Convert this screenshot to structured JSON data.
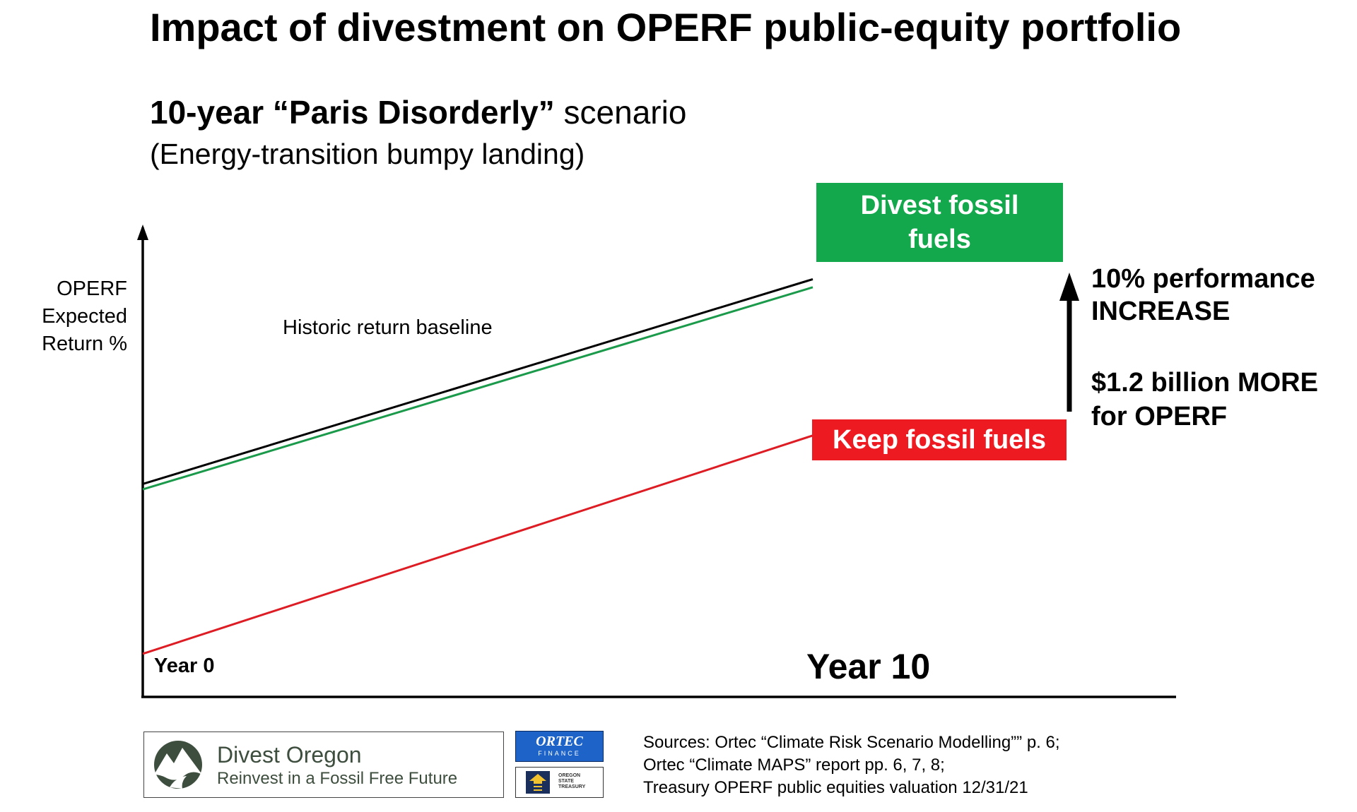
{
  "title": "Impact of divestment on OPERF public-equity portfolio",
  "subtitle": {
    "bold": "10-year “Paris Disorderly”",
    "rest": " scenario"
  },
  "subtitle2": "(Energy-transition bumpy landing)",
  "chart_data": {
    "type": "line",
    "x": [
      "Year 0",
      "Year 10"
    ],
    "x_tick_labels": [
      "Year 0",
      "Year 10"
    ],
    "ylabel": [
      "OPERF",
      "Expected",
      "Return %"
    ],
    "y_ticks": "none",
    "series": [
      {
        "name": "Historic return baseline",
        "color": "#000000",
        "values": [
          0.79,
          1.55
        ]
      },
      {
        "name": "Divest fossil fuels",
        "color": "#1a9a4a",
        "values": [
          0.77,
          1.52
        ]
      },
      {
        "name": "Keep fossil fuels",
        "color": "#dd1c24",
        "values": [
          0.16,
          0.97
        ]
      }
    ],
    "ylim": [
      0,
      1.8
    ],
    "grid": false,
    "annotations": {
      "baseline_label": "Historic return baseline",
      "divest_box": [
        "Divest fossil",
        "fuels"
      ],
      "keep_box": "Keep fossil fuels",
      "performance": [
        "10% performance",
        "INCREASE"
      ],
      "money": [
        "$1.2 billion MORE",
        "for OPERF"
      ]
    }
  },
  "colors": {
    "divest_green": "#12a84b",
    "keep_red": "#ee1a22"
  },
  "footer": {
    "logo_name": "Divest Oregon",
    "logo_tagline": "Reinvest in a Fossil Free Future",
    "ortec_name": "ORTEC",
    "ortec_sub": "FINANCE",
    "treasury_lines": [
      "OREGON",
      "STATE",
      "TREASURY"
    ],
    "sources": [
      "Sources: Ortec “Climate Risk Scenario Modelling”” p. 6;",
      "Ortec “Climate MAPS”  report pp. 6, 7, 8;",
      "Treasury OPERF public equities valuation 12/31/21"
    ]
  }
}
